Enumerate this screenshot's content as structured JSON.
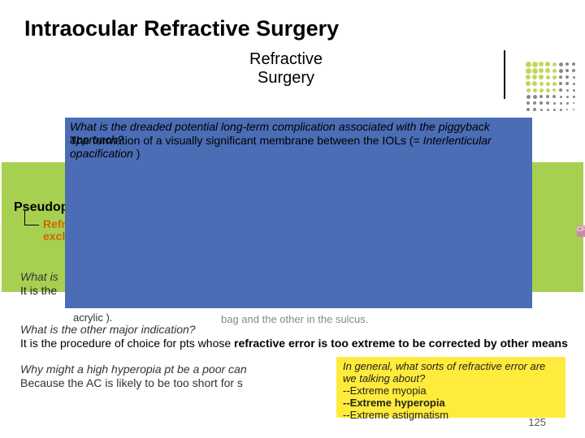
{
  "title": "Intraocular Refractive Surgery",
  "subtitle": "Refractive\nSurgery",
  "pseudophakic": {
    "label": "Pseudop",
    "sub": "Refra\nexch"
  },
  "blue": {
    "question": "What is the dreaded potential long-term complication associated with the piggyback approach?",
    "answer_pre": "The formation of a visually significant membrane between the IOLs (= ",
    "answer_term": "Interlenticular opacification",
    "answer_post": " )"
  },
  "yellow": {
    "q1": "What is",
    "a1": "It is the",
    "acrylic": "acrylic ).",
    "bag": "bag and the other in the sulcus.",
    "q2": "What is the other major indication?",
    "a2_pre": "It is the procedure of choice for pts whose ",
    "a2_bold": "refractive error is too extreme to be corrected by other means",
    "q3": "Why might a high hyperopia pt be a poor can",
    "a3": "Because the AC is likely to be too short for s"
  },
  "yellow2": {
    "q": "In general, what sorts of refractive error are we talking about?",
    "l1": "--Extreme myopia",
    "l2": "--Extreme hyperopia",
    "l3": "--Extreme astigmatism"
  },
  "page_number": "125",
  "cf": "CF",
  "dots": {
    "colors": [
      "#c0d85a",
      "#c0d85a",
      "#c0d85a",
      "#c0d85a",
      "#c0d85a",
      "#888",
      "#888",
      "#888",
      "#c0d85a",
      "#c0d85a",
      "#c0d85a",
      "#c0d85a",
      "#c0d85a",
      "#888",
      "#888",
      "#888",
      "#c0d85a",
      "#c0d85a",
      "#c0d85a",
      "#c0d85a",
      "#c0d85a",
      "#888",
      "#888",
      "#888",
      "#c0d85a",
      "#c0d85a",
      "#c0d85a",
      "#c0d85a",
      "#c0d85a",
      "#888",
      "#888",
      "#888",
      "#c0d85a",
      "#c0d85a",
      "#c0d85a",
      "#c0d85a",
      "#c0d85a",
      "#888",
      "#888",
      "#888",
      "#888",
      "#888",
      "#888",
      "#888",
      "#888",
      "#888",
      "#888",
      "#888",
      "#888",
      "#888",
      "#888",
      "#888",
      "#888",
      "#888",
      "#888",
      "#888",
      "#888",
      "#888",
      "#888",
      "#888",
      "#888",
      "#888",
      "#888",
      "#888"
    ],
    "sizes": [
      7,
      7,
      6,
      6,
      5,
      5,
      4,
      4,
      7,
      7,
      6,
      6,
      5,
      5,
      4,
      4,
      6,
      6,
      6,
      5,
      5,
      4,
      4,
      3,
      6,
      6,
      5,
      5,
      5,
      4,
      4,
      3,
      5,
      5,
      5,
      5,
      4,
      4,
      3,
      3,
      5,
      5,
      4,
      4,
      4,
      3,
      3,
      3,
      4,
      4,
      4,
      4,
      3,
      3,
      3,
      2,
      4,
      4,
      3,
      3,
      3,
      3,
      2,
      2
    ]
  }
}
